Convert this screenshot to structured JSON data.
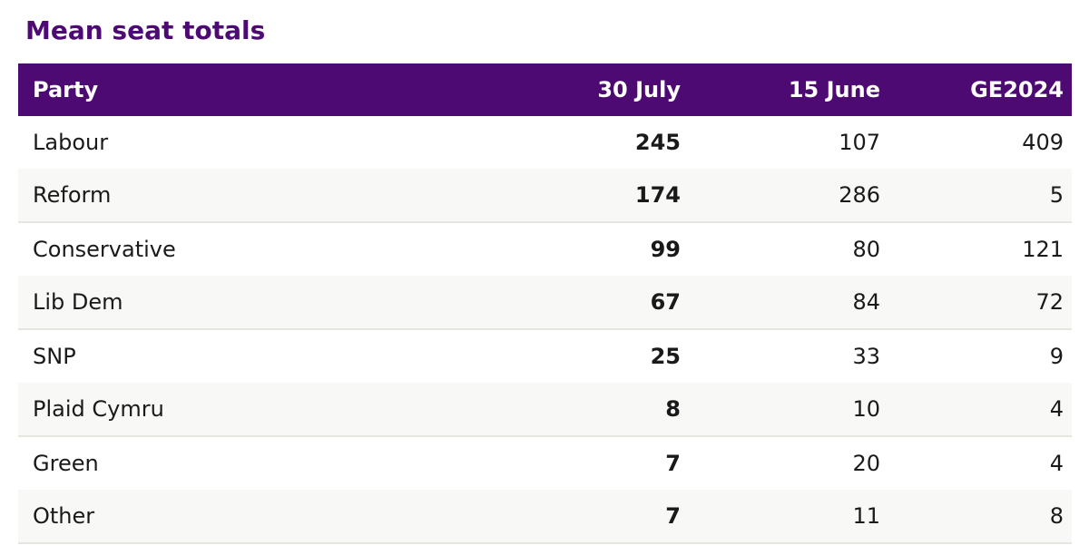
{
  "title": "Mean seat totals",
  "table": {
    "headers": {
      "party": "Party",
      "july": "30 July",
      "june": "15 June",
      "ge": "GE2024"
    },
    "rows": [
      {
        "party": "Labour",
        "july": "245",
        "june": "107",
        "ge": "409"
      },
      {
        "party": "Reform",
        "july": "174",
        "june": "286",
        "ge": "5"
      },
      {
        "party": "Conservative",
        "july": "99",
        "june": "80",
        "ge": "121"
      },
      {
        "party": "Lib Dem",
        "july": "67",
        "june": "84",
        "ge": "72"
      },
      {
        "party": "SNP",
        "july": "25",
        "june": "33",
        "ge": "9"
      },
      {
        "party": "Plaid Cymru",
        "july": "8",
        "june": "10",
        "ge": "4"
      },
      {
        "party": "Green",
        "july": "7",
        "june": "20",
        "ge": "4"
      },
      {
        "party": "Other",
        "july": "7",
        "june": "11",
        "ge": "8"
      }
    ]
  },
  "colors": {
    "header_bg": "#4d0a73",
    "title": "#4d0a73",
    "alt_row_bg": "#f8f8f6",
    "row_divider": "#e6e6e1"
  }
}
